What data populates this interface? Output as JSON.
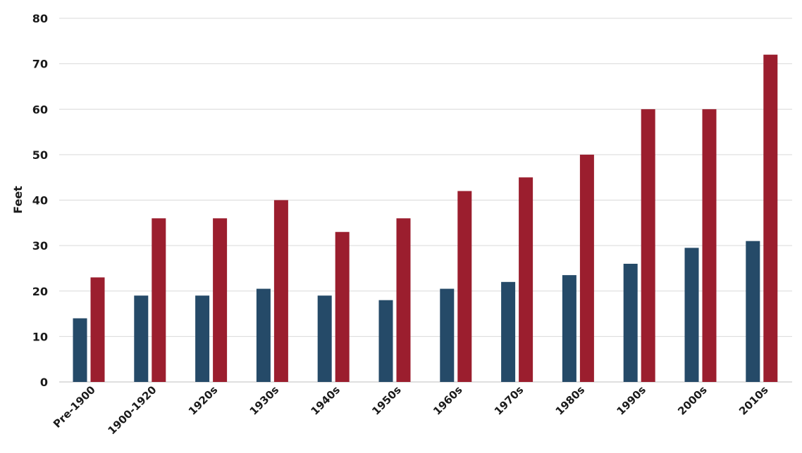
{
  "chart_data": {
    "type": "bar",
    "title": "",
    "xlabel": "",
    "ylabel": "Feet",
    "ylim": [
      0,
      80
    ],
    "yticks": [
      0,
      10,
      20,
      30,
      40,
      50,
      60,
      70,
      80
    ],
    "grid": true,
    "legend": "none",
    "categories": [
      "Pre-1900",
      "1900-1920",
      "1920s",
      "1930s",
      "1940s",
      "1950s",
      "1960s",
      "1970s",
      "1980s",
      "1990s",
      "2000s",
      "2010s"
    ],
    "series": [
      {
        "color": "#254a68",
        "values": [
          14,
          19,
          19,
          20.5,
          19,
          18,
          20.5,
          22,
          23.5,
          26,
          29.5,
          31
        ]
      },
      {
        "color": "#9b1e2e",
        "values": [
          23,
          36,
          36,
          40,
          33,
          36,
          42,
          45,
          50,
          60,
          60,
          72
        ]
      }
    ]
  }
}
